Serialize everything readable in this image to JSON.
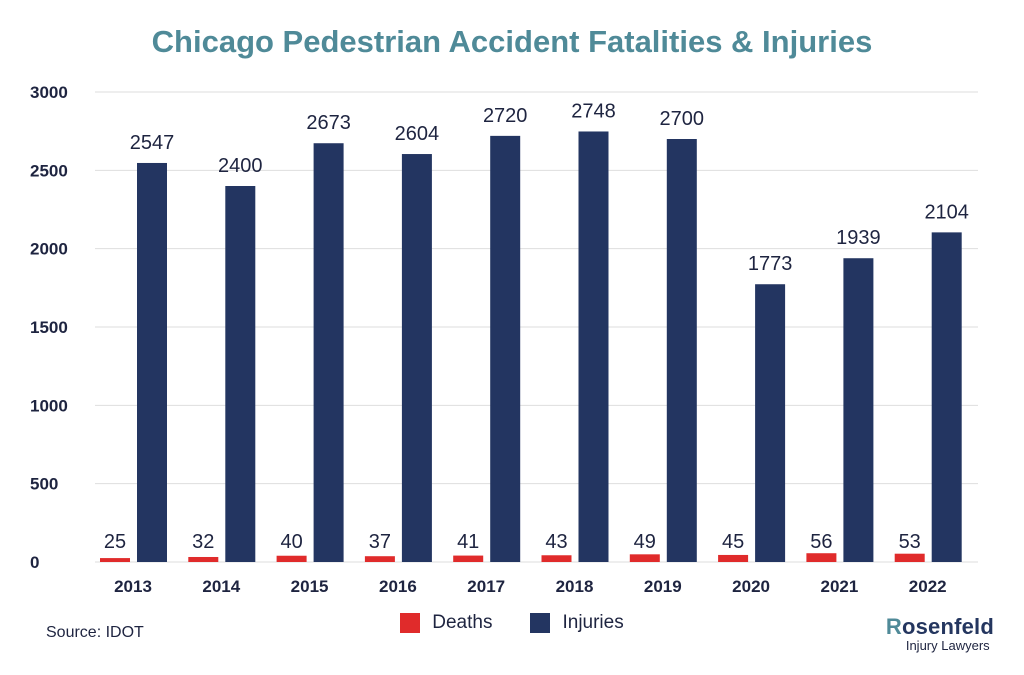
{
  "title": "Chicago Pedestrian Accident Fatalities & Injuries",
  "source": "Source: IDOT",
  "logo": {
    "initial": "R",
    "name": "osenfeld",
    "subtitle": "Injury Lawyers"
  },
  "colors": {
    "deaths": "#e02b2b",
    "injuries": "#233561",
    "title": "#4f8a98",
    "grid": "#dedede"
  },
  "chart_data": {
    "type": "bar",
    "title": "Chicago Pedestrian Accident Fatalities & Injuries",
    "categories": [
      "2013",
      "2014",
      "2015",
      "2016",
      "2017",
      "2018",
      "2019",
      "2020",
      "2021",
      "2022"
    ],
    "series": [
      {
        "name": "Deaths",
        "values": [
          25,
          32,
          40,
          37,
          41,
          43,
          49,
          45,
          56,
          53
        ]
      },
      {
        "name": "Injuries",
        "values": [
          2547,
          2400,
          2673,
          2604,
          2720,
          2748,
          2700,
          1773,
          1939,
          2104
        ]
      }
    ],
    "yticks": [
      "0",
      "500",
      "1000",
      "1500",
      "2000",
      "2500",
      "3000"
    ],
    "ylim": [
      0,
      3000
    ],
    "grid": true,
    "legend": "bottom-center",
    "xlabel": "",
    "ylabel": ""
  }
}
